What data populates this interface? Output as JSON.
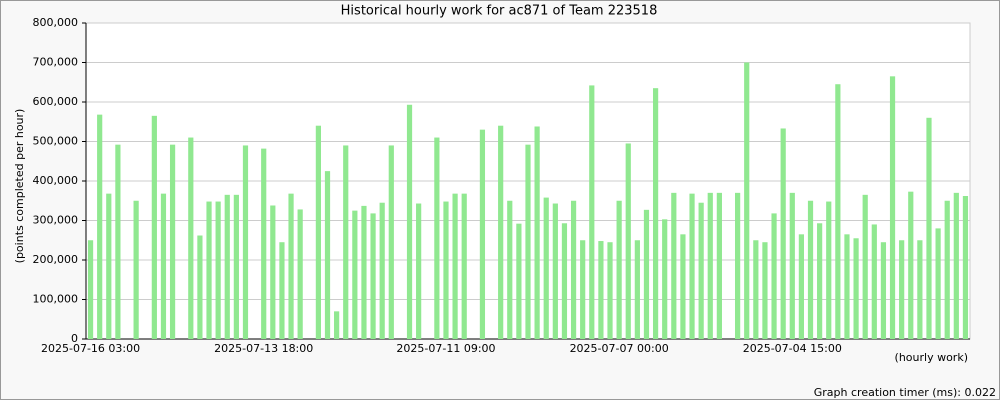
{
  "chart_data": {
    "type": "bar",
    "title": "Historical hourly work for ac871 of Team 223518",
    "y_label": "(points completed per hour)",
    "x_label": "(hourly work)",
    "footer": "Graph creation timer (ms): 0.022",
    "color": "#90e890",
    "grid": true,
    "ylim": [
      0,
      800000
    ],
    "yticks": [
      0,
      {
        "value": 100000,
        "label": "100,000"
      },
      {
        "value": 200000,
        "label": "200,000"
      },
      {
        "value": 300000,
        "label": "300,000"
      },
      {
        "value": 400000,
        "label": "400,000"
      },
      {
        "value": 500000,
        "label": "500,000"
      },
      {
        "value": 600000,
        "label": "600,000"
      },
      {
        "value": 700000,
        "label": "700,000"
      },
      {
        "value": 800000,
        "label": "800,000"
      }
    ],
    "categories": [
      "2025-07-16 03:00",
      null,
      null,
      null,
      null,
      null,
      null,
      null,
      null,
      null,
      null,
      null,
      null,
      null,
      null,
      null,
      null,
      null,
      null,
      "2025-07-13 18:00",
      null,
      null,
      null,
      null,
      null,
      null,
      null,
      null,
      null,
      null,
      null,
      null,
      null,
      null,
      null,
      null,
      null,
      null,
      null,
      "2025-07-11 09:00",
      null,
      null,
      null,
      null,
      null,
      null,
      null,
      null,
      null,
      null,
      null,
      null,
      null,
      null,
      null,
      null,
      null,
      null,
      "2025-07-07 00:00",
      null,
      null,
      null,
      null,
      null,
      null,
      null,
      null,
      null,
      null,
      null,
      null,
      null,
      null,
      null,
      null,
      null,
      null,
      "2025-07-04 15:00",
      null,
      null,
      null,
      null,
      null,
      null,
      null,
      null,
      null,
      null,
      null,
      null,
      null,
      null,
      null,
      null,
      null,
      null,
      null
    ],
    "values": [
      250000,
      568000,
      368000,
      492000,
      null,
      350000,
      null,
      565000,
      368000,
      492000,
      null,
      510000,
      262000,
      348000,
      348000,
      365000,
      365000,
      490000,
      null,
      482000,
      338000,
      245000,
      368000,
      328000,
      null,
      540000,
      425000,
      70000,
      490000,
      325000,
      337000,
      318000,
      345000,
      490000,
      null,
      593000,
      343000,
      null,
      510000,
      348000,
      368000,
      368000,
      null,
      530000,
      null,
      540000,
      350000,
      292000,
      492000,
      538000,
      358000,
      343000,
      293000,
      350000,
      250000,
      642000,
      248000,
      245000,
      350000,
      495000,
      250000,
      327000,
      635000,
      303000,
      370000,
      265000,
      368000,
      345000,
      370000,
      370000,
      null,
      370000,
      700000,
      250000,
      245000,
      318000,
      533000,
      370000,
      265000,
      350000,
      293000,
      348000,
      645000,
      265000,
      255000,
      365000,
      290000,
      245000,
      665000,
      250000,
      373000,
      250000,
      560000,
      280000,
      350000,
      370000,
      362000
    ]
  }
}
